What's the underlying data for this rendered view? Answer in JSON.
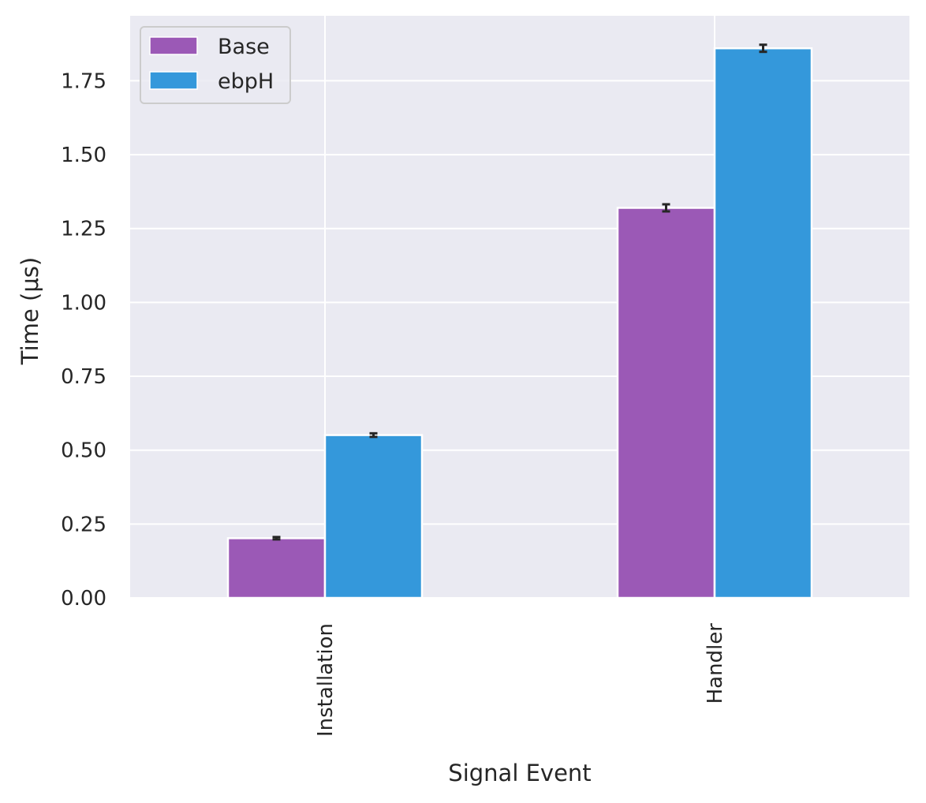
{
  "chart_data": {
    "type": "bar",
    "categories": [
      "Installation",
      "Handler"
    ],
    "series": [
      {
        "name": "Base",
        "values": [
          0.202,
          1.32
        ],
        "errors": [
          0.004,
          0.012
        ],
        "color": "#9b59b6"
      },
      {
        "name": "ebpH",
        "values": [
          0.551,
          1.86
        ],
        "errors": [
          0.006,
          0.012
        ],
        "color": "#3498db"
      }
    ],
    "title": "",
    "xlabel": "Signal Event",
    "ylabel": "Time (μs)",
    "ylim": [
      0,
      1.97
    ],
    "yticks": [
      "0.00",
      "0.25",
      "0.50",
      "0.75",
      "1.00",
      "1.25",
      "1.50",
      "1.75"
    ],
    "ytick_values": [
      0,
      0.25,
      0.5,
      0.75,
      1.0,
      1.25,
      1.5,
      1.75
    ],
    "grid": true,
    "legend_position": "top-left",
    "background_color": "#eaeaf2",
    "grid_color": "#ffffff",
    "errorbar_color": "#262626"
  }
}
